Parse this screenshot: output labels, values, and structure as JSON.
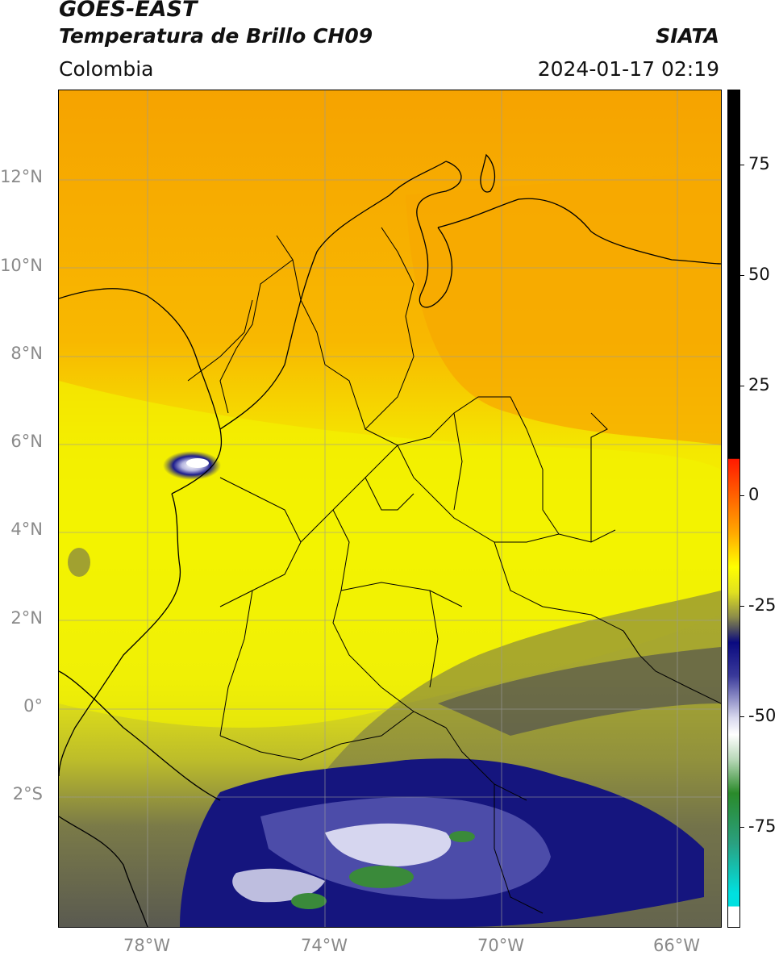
{
  "header": {
    "title": "GOES-EAST",
    "subtitle": "Temperatura de Brillo CH09",
    "region": "Colombia",
    "organization": "SIATA",
    "datetime": "2024-01-17 02:19"
  },
  "map": {
    "latitude_labels": [
      "12°N",
      "10°N",
      "8°N",
      "6°N",
      "4°N",
      "2°N",
      "0°",
      "2°S"
    ],
    "longitude_labels": [
      "78°W",
      "74°W",
      "70°W",
      "66°W"
    ],
    "extent": {
      "lon_min": -80,
      "lon_max": -65,
      "lat_min": -5,
      "lat_max": 14
    },
    "colors": {
      "warm_orange": "#f7a600",
      "yellow": "#f4f400",
      "olive": "#8a8a3a",
      "gray_dark": "#4a4a55",
      "deep_blue": "#1a1a8c",
      "white_cloud": "#ffffff",
      "green_cold": "#3a8a3a"
    }
  },
  "colorbar": {
    "labels": [
      "75",
      "50",
      "25",
      "0",
      "-25",
      "-50",
      "-75"
    ],
    "range": [
      -95,
      90
    ],
    "colors": {
      "black_segment": "#000000",
      "red": "#ff2000",
      "orange": "#ff9a00",
      "yellow": "#ffff00",
      "olive": "#7a7a40",
      "navy": "#0a0a80",
      "white": "#ffffff",
      "green": "#2a8a2a",
      "cyan": "#00e0e0"
    }
  }
}
